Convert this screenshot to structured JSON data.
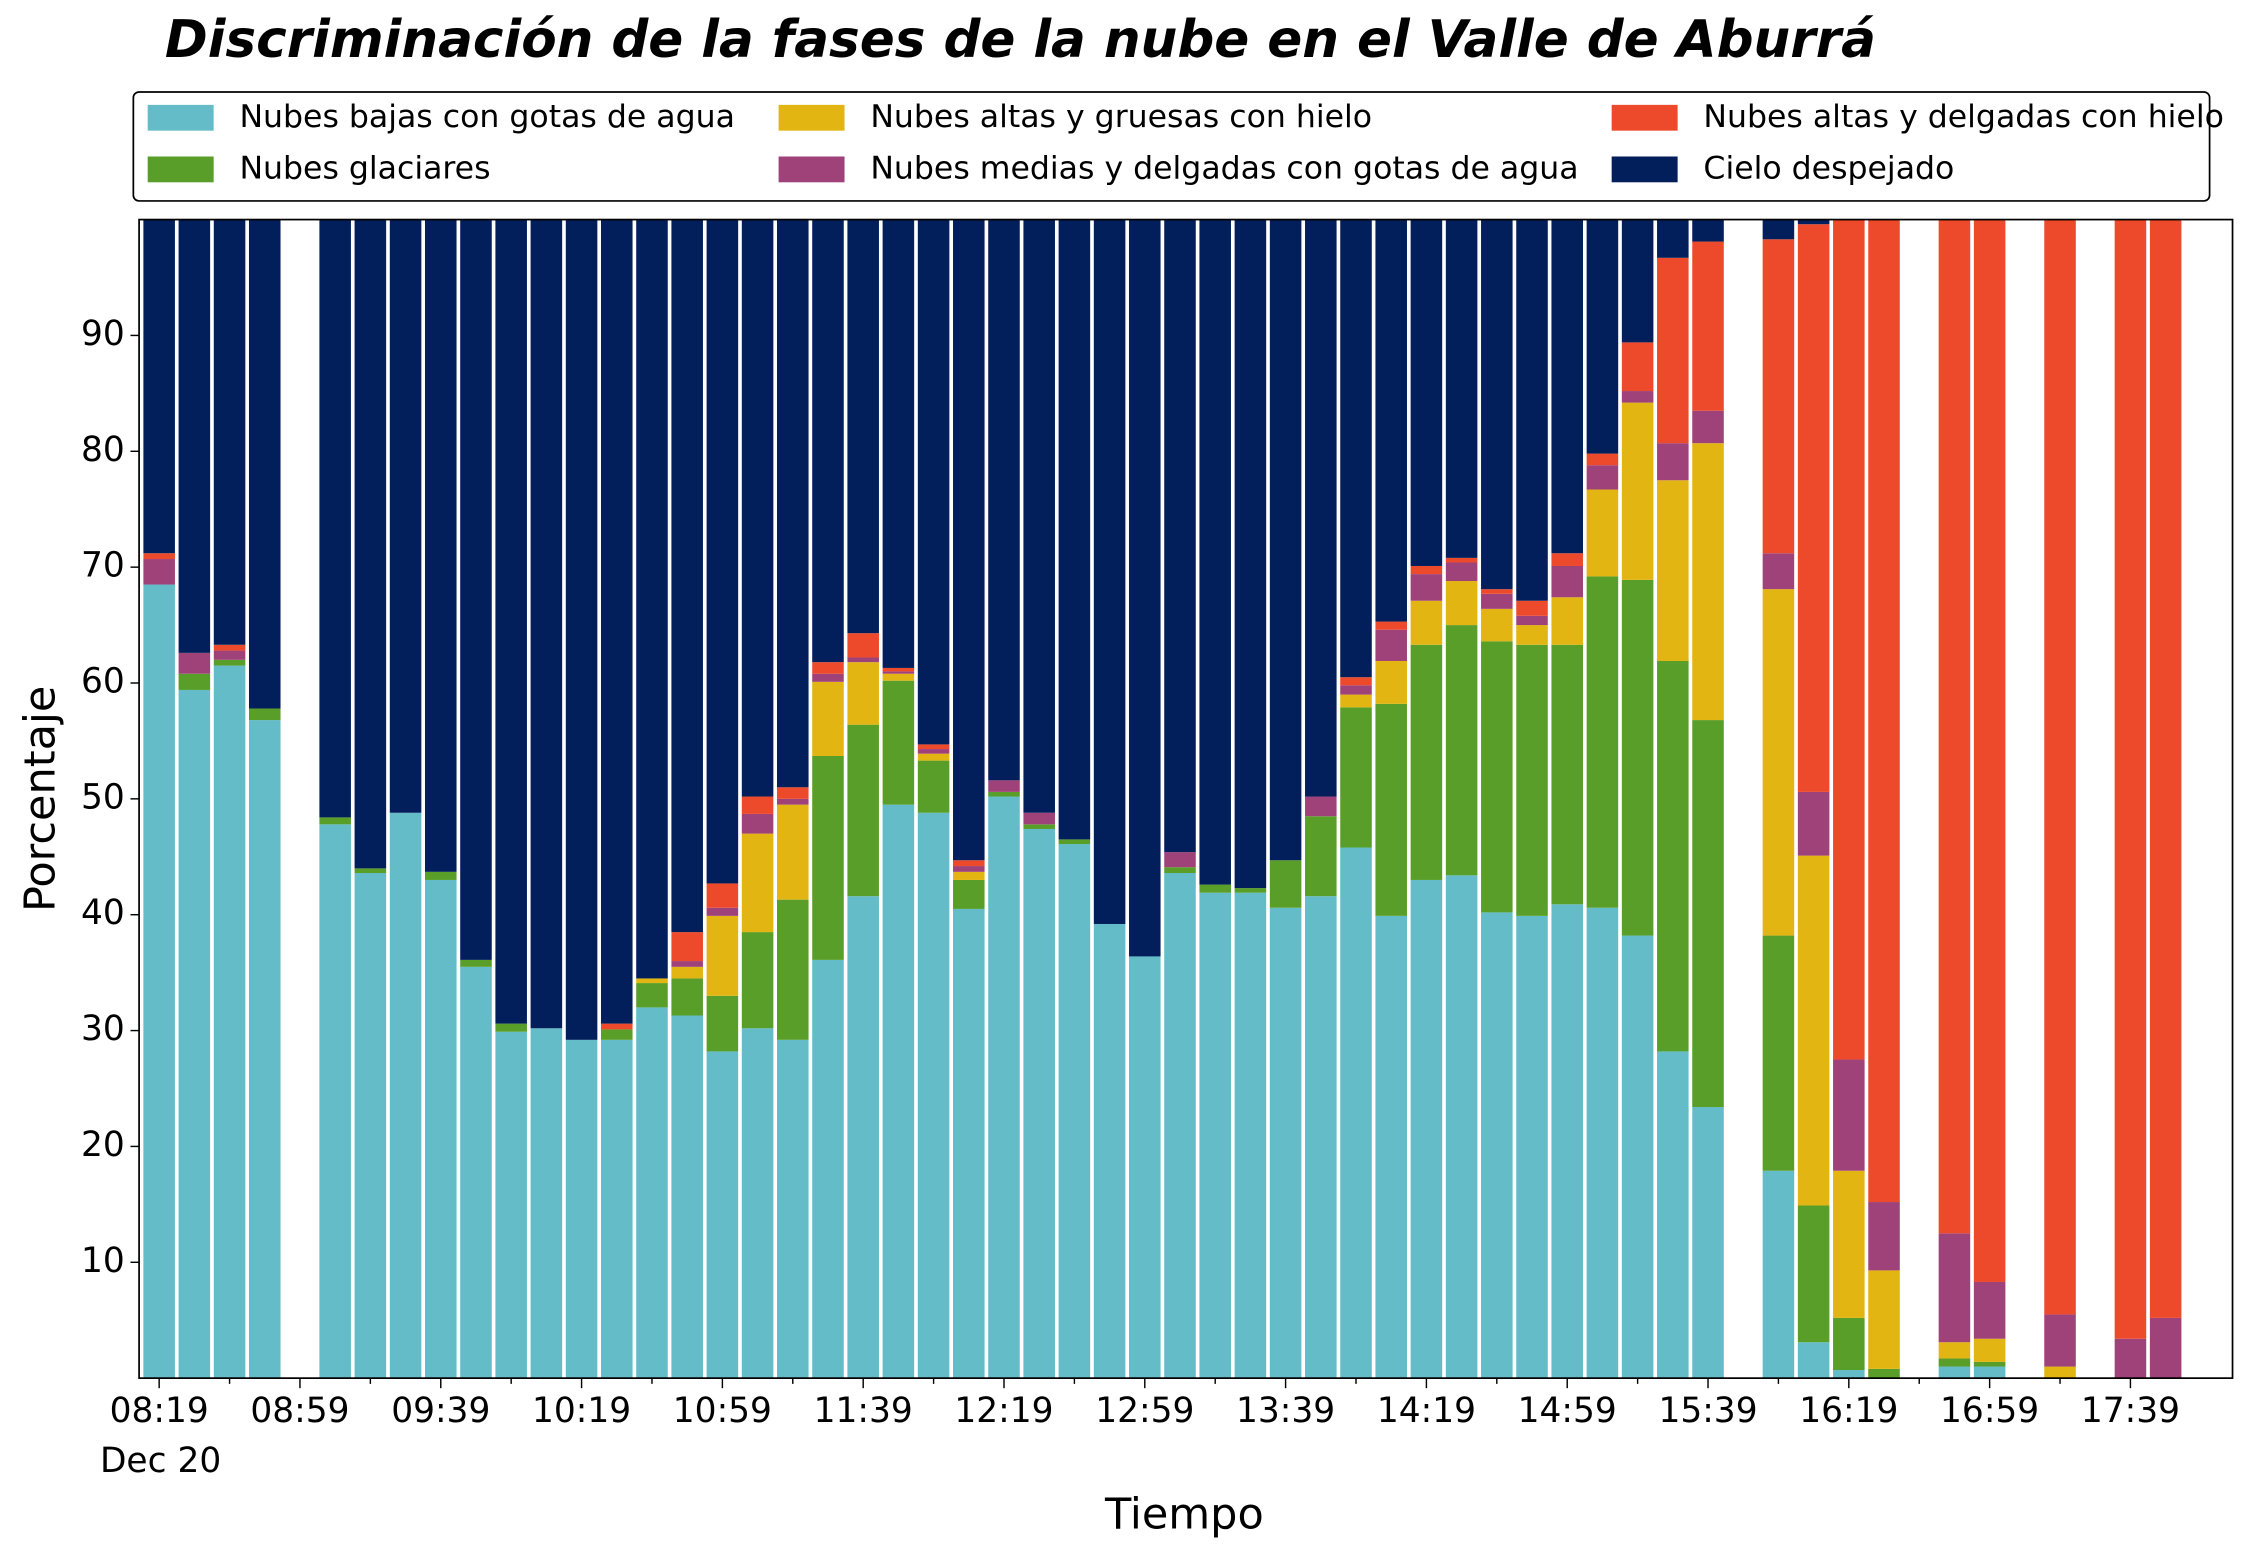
{
  "chart_data": {
    "type": "stacked_bar",
    "title": "Discriminación de la fases de la nube en el Valle de Aburrá",
    "xlabel": "Tiempo",
    "ylabel": "Porcentaje",
    "date_label": "Dec 20",
    "categories": [
      "08:19",
      null,
      null,
      null,
      "08:59",
      null,
      null,
      null,
      "09:39",
      null,
      null,
      null,
      "10:19",
      null,
      null,
      null,
      "10:59",
      null,
      null,
      null,
      "11:39",
      null,
      null,
      null,
      "12:19",
      null,
      null,
      null,
      "12:59",
      null,
      null,
      null,
      "13:39",
      null,
      null,
      null,
      "14:19",
      null,
      null,
      null,
      "14:59",
      null,
      null,
      null,
      "15:39",
      null,
      null,
      null,
      "16:19",
      null,
      null,
      null,
      "16:59",
      null,
      null,
      null,
      "17:39",
      null
    ],
    "ylim": [
      0,
      100
    ],
    "yticks": [
      10,
      20,
      30,
      40,
      50,
      60,
      70,
      80,
      90
    ],
    "series": [
      {
        "name": "Nubes bajas con gotas de agua",
        "color": "#63bcc8",
        "values": [
          68.5,
          59.4,
          61.5,
          56.8,
          null,
          47.8,
          43.6,
          48.8,
          43.0,
          35.5,
          29.9,
          30.2,
          29.2,
          29.2,
          32.0,
          31.3,
          28.2,
          30.2,
          29.2,
          36.1,
          41.6,
          49.5,
          48.8,
          40.5,
          50.2,
          47.4,
          46.1,
          39.2,
          36.4,
          43.6,
          41.9,
          41.9,
          40.6,
          41.6,
          45.8,
          39.9,
          43.0,
          43.4,
          40.2,
          39.9,
          40.9,
          40.6,
          38.2,
          28.2,
          23.4,
          null,
          17.9,
          3.1,
          0.7,
          0,
          null,
          1.0,
          1.0,
          null,
          0,
          null,
          0,
          0
        ]
      },
      {
        "name": "Nubes glaciares",
        "color": "#5a9e2a",
        "values": [
          0,
          1.4,
          0.5,
          1.0,
          null,
          0.6,
          0.4,
          0,
          0.7,
          0.6,
          0.7,
          0,
          0,
          0.9,
          2.1,
          3.2,
          4.8,
          8.3,
          12.1,
          17.6,
          14.8,
          10.7,
          4.5,
          2.5,
          0.4,
          0.4,
          0.4,
          0,
          0,
          0.5,
          0.7,
          0.4,
          4.1,
          6.9,
          12.1,
          18.3,
          20.3,
          21.6,
          23.4,
          23.4,
          22.4,
          28.6,
          30.7,
          33.7,
          33.4,
          null,
          20.3,
          11.8,
          4.5,
          0.8,
          null,
          0.7,
          0.4,
          null,
          0,
          null,
          0,
          0
        ]
      },
      {
        "name": "Nubes altas y gruesas con hielo",
        "color": "#e3b512",
        "values": [
          0,
          0,
          0,
          0,
          null,
          0,
          0,
          0,
          0,
          0,
          0,
          0,
          0,
          0,
          0.4,
          1.0,
          6.9,
          8.5,
          8.2,
          6.4,
          5.4,
          0.6,
          0.6,
          0.7,
          0,
          0,
          0,
          0,
          0,
          0,
          0,
          0,
          0,
          0,
          1.1,
          3.7,
          3.8,
          3.8,
          2.8,
          1.7,
          4.1,
          7.5,
          15.3,
          15.6,
          23.9,
          null,
          29.9,
          30.2,
          12.7,
          8.5,
          null,
          1.4,
          2.0,
          null,
          1.0,
          null,
          0,
          0
        ]
      },
      {
        "name": "Nubes medias y delgadas con gotas de agua",
        "color": "#a0427a",
        "values": [
          2.2,
          1.8,
          0.8,
          0,
          null,
          0,
          0,
          0,
          0,
          0,
          0,
          0,
          0,
          0,
          0,
          0.5,
          0.7,
          1.7,
          0.5,
          0.7,
          0.4,
          0.2,
          0.4,
          0.5,
          1.0,
          1.0,
          0,
          0,
          0,
          1.3,
          0,
          0,
          0,
          1.7,
          0.8,
          2.7,
          2.3,
          1.6,
          1.3,
          0.8,
          2.7,
          2.1,
          1.0,
          3.2,
          2.8,
          null,
          3.1,
          5.5,
          9.6,
          5.9,
          null,
          9.4,
          4.9,
          null,
          4.5,
          null,
          3.4,
          5.2
        ]
      },
      {
        "name": "Nubes altas y delgadas con hielo",
        "color": "#ed4a2c",
        "values": [
          0.5,
          0,
          0.5,
          0,
          null,
          0,
          0,
          0,
          0,
          0,
          0,
          0,
          0,
          0.5,
          0,
          2.5,
          2.1,
          1.5,
          1.0,
          1.0,
          2.1,
          0.3,
          0.4,
          0.5,
          0,
          0,
          0,
          0,
          0,
          0,
          0,
          0,
          0,
          0,
          0.7,
          0.7,
          0.7,
          0.4,
          0.4,
          1.3,
          1.1,
          1.0,
          4.2,
          16.0,
          14.6,
          null,
          27.1,
          49.0,
          72.5,
          84.8,
          null,
          87.5,
          91.7,
          null,
          94.5,
          null,
          96.6,
          94.8
        ]
      },
      {
        "name": "Cielo despejado",
        "color": "#021f5b",
        "values": [
          28.8,
          37.4,
          36.7,
          42.2,
          null,
          51.6,
          56.0,
          51.2,
          56.3,
          63.9,
          69.4,
          69.8,
          70.8,
          69.4,
          65.5,
          61.5,
          57.3,
          49.8,
          49.0,
          38.2,
          35.7,
          38.7,
          45.3,
          55.3,
          48.4,
          51.2,
          53.5,
          60.8,
          63.6,
          54.6,
          57.4,
          57.7,
          55.3,
          49.8,
          39.5,
          34.7,
          29.9,
          29.2,
          31.9,
          32.9,
          28.8,
          20.2,
          10.6,
          3.3,
          1.9,
          null,
          1.7,
          0.4,
          0,
          0,
          null,
          0,
          0,
          null,
          0,
          null,
          0,
          0
        ]
      }
    ]
  }
}
